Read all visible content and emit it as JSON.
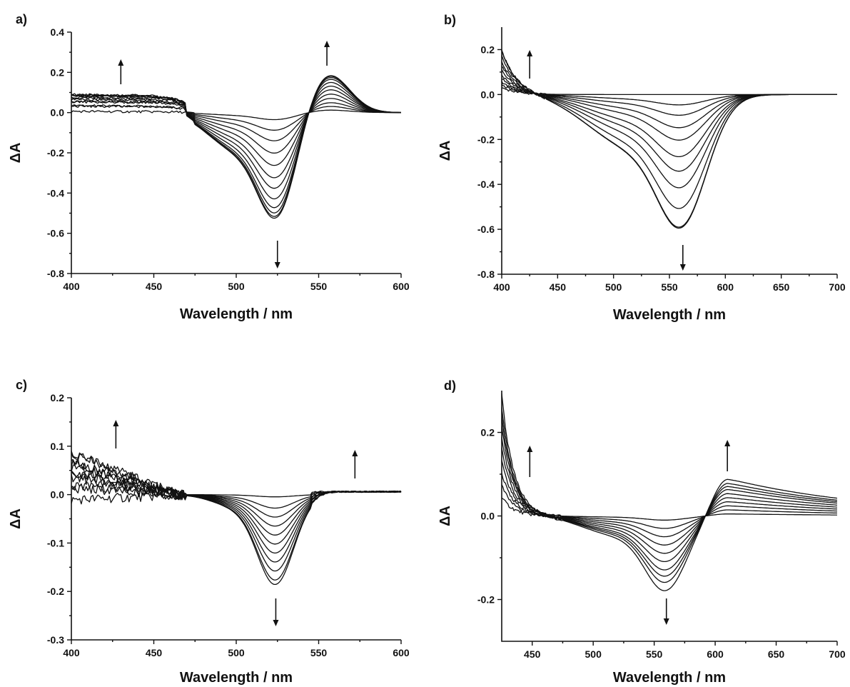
{
  "chart_data": [
    {
      "panel_label": "a)",
      "type": "line",
      "xlabel": "Wavelength / nm",
      "ylabel": "ΔA",
      "xlim": [
        400,
        600
      ],
      "ylim": [
        -0.8,
        0.4
      ],
      "x_ticks": [
        400,
        450,
        500,
        550,
        600
      ],
      "y_ticks": [
        -0.8,
        -0.6,
        -0.4,
        -0.2,
        0.0,
        0.2,
        0.4
      ],
      "x_tick_labels": [
        "400",
        "450",
        "500",
        "550",
        "600"
      ],
      "y_tick_labels": [
        "-0.8",
        "-0.6",
        "-0.4",
        "-0.2",
        "0.0",
        "0.2",
        "0.4"
      ],
      "series_count": 12,
      "series_peak_minima": [
        -0.04,
        -0.1,
        -0.16,
        -0.23,
        -0.3,
        -0.37,
        -0.43,
        -0.49,
        -0.54,
        -0.57,
        -0.59,
        -0.6
      ],
      "bleach_center_nm": 525,
      "positive_band_center_nm": 555,
      "positive_band_max": 0.2,
      "blue_band_max": 0.09,
      "isosbestic_points_nm": [
        470,
        541
      ],
      "arrows": [
        {
          "x": 430,
          "direction": "up"
        },
        {
          "x": 525,
          "direction": "down"
        },
        {
          "x": 555,
          "direction": "up"
        }
      ]
    },
    {
      "panel_label": "b)",
      "type": "line",
      "xlabel": "Wavelength / nm",
      "ylabel": "ΔA",
      "xlim": [
        400,
        700
      ],
      "ylim": [
        -0.8,
        0.3
      ],
      "x_ticks": [
        400,
        450,
        500,
        550,
        600,
        650,
        700
      ],
      "y_ticks": [
        -0.8,
        -0.6,
        -0.4,
        -0.2,
        0.0,
        0.2
      ],
      "x_tick_labels": [
        "400",
        "450",
        "500",
        "550",
        "600",
        "650",
        "700"
      ],
      "y_tick_labels": [
        "-0.8",
        "-0.6",
        "-0.4",
        "-0.2",
        "0.0",
        "0.2"
      ],
      "series_count": 11,
      "series_peak_minima": [
        0.0,
        -0.05,
        -0.1,
        -0.16,
        -0.22,
        -0.3,
        -0.37,
        -0.45,
        -0.55,
        -0.64,
        -0.645
      ],
      "bleach_center_nm": 562,
      "blue_band_max": 0.2,
      "isosbestic_points_nm": [
        440
      ],
      "arrows": [
        {
          "x": 425,
          "direction": "up"
        },
        {
          "x": 562,
          "direction": "down"
        }
      ]
    },
    {
      "panel_label": "c)",
      "type": "line",
      "xlabel": "Wavelength / nm",
      "ylabel": "ΔA",
      "xlim": [
        400,
        600
      ],
      "ylim": [
        -0.3,
        0.2
      ],
      "x_ticks": [
        400,
        450,
        500,
        550,
        600
      ],
      "y_ticks": [
        -0.3,
        -0.2,
        -0.1,
        0.0,
        0.1,
        0.2
      ],
      "x_tick_labels": [
        "400",
        "450",
        "500",
        "550",
        "600"
      ],
      "y_tick_labels": [
        "-0.3",
        "-0.2",
        "-0.1",
        "0.0",
        "0.1",
        "0.2"
      ],
      "series_count": 11,
      "series_peak_minima": [
        -0.005,
        -0.03,
        -0.05,
        -0.07,
        -0.09,
        -0.11,
        -0.13,
        -0.15,
        -0.17,
        -0.19,
        -0.2
      ],
      "bleach_center_nm": 524,
      "blue_band_max": 0.09,
      "isosbestic_points_nm": [
        470,
        545
      ],
      "arrows": [
        {
          "x": 427,
          "direction": "up"
        },
        {
          "x": 524,
          "direction": "down"
        },
        {
          "x": 572,
          "direction": "up"
        }
      ]
    },
    {
      "panel_label": "d)",
      "type": "line",
      "xlabel": "Wavelength / nm",
      "ylabel": "ΔA",
      "xlim": [
        425,
        700
      ],
      "ylim": [
        -0.3,
        0.3
      ],
      "x_ticks": [
        450,
        500,
        550,
        600,
        650,
        700
      ],
      "y_ticks": [
        -0.2,
        0.0,
        0.2
      ],
      "x_tick_labels": [
        "450",
        "500",
        "550",
        "600",
        "650",
        "700"
      ],
      "y_tick_labels": [
        "-0.2",
        "0.0",
        "0.2"
      ],
      "series_count": 10,
      "series_peak_minima": [
        -0.01,
        -0.03,
        -0.05,
        -0.07,
        -0.09,
        -0.11,
        -0.13,
        -0.145,
        -0.16,
        -0.18
      ],
      "bleach_center_nm": 560,
      "positive_band_center_nm": 610,
      "positive_band_max": 0.09,
      "blue_band_max": 0.29,
      "isosbestic_points_nm": [
        475,
        585
      ],
      "arrows": [
        {
          "x": 448,
          "direction": "up"
        },
        {
          "x": 560,
          "direction": "down"
        },
        {
          "x": 610,
          "direction": "up"
        }
      ]
    }
  ]
}
